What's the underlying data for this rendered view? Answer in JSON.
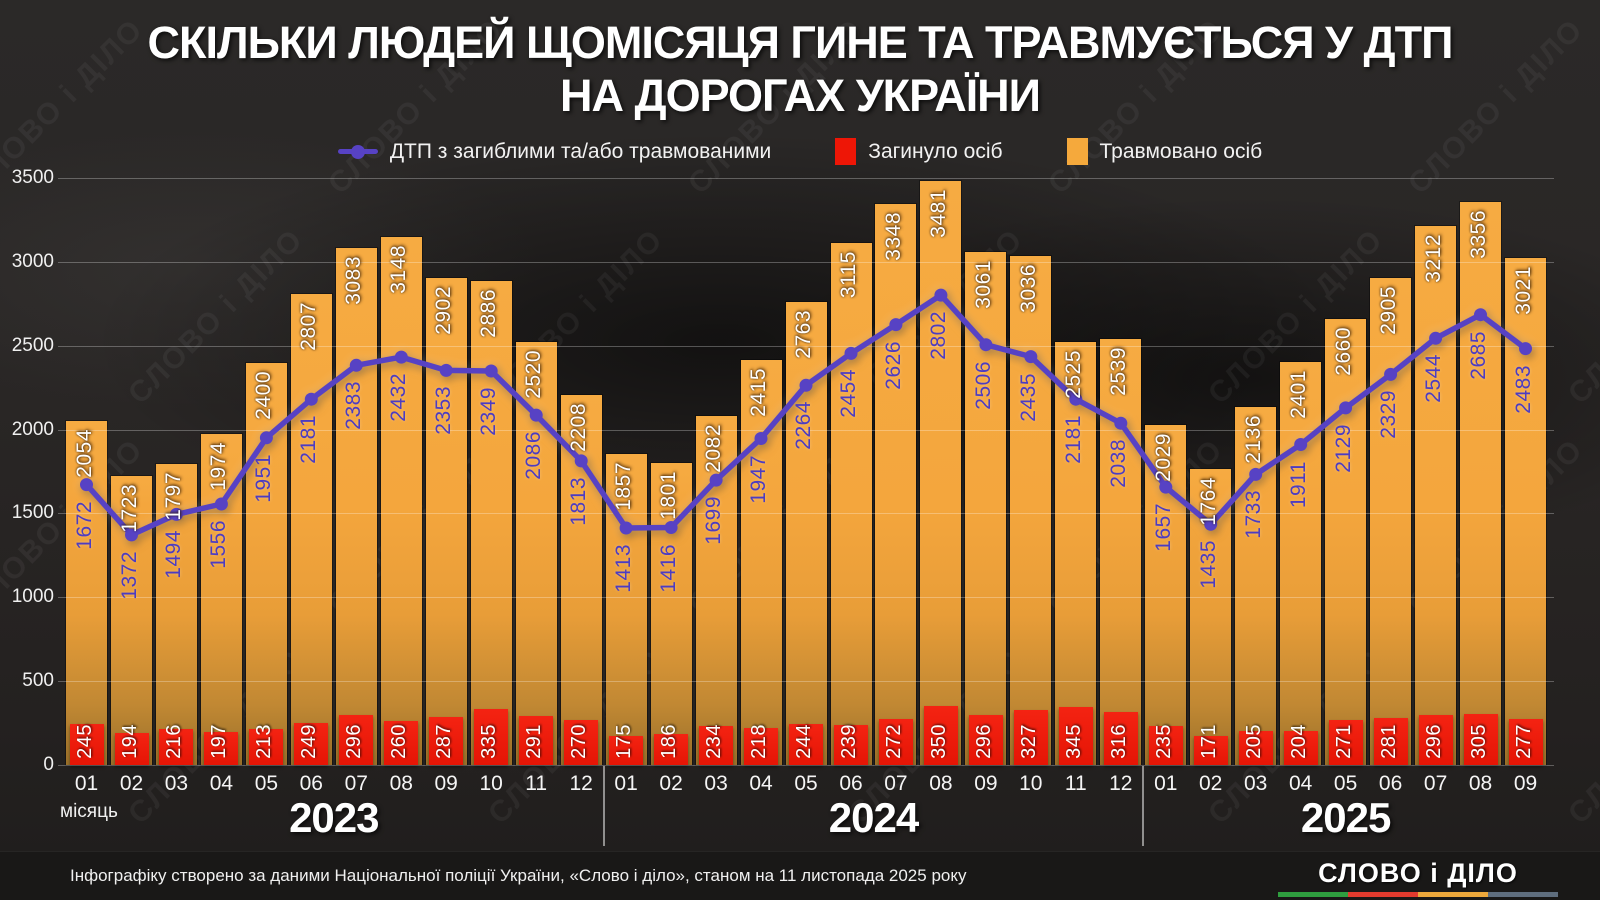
{
  "title": {
    "line1": "СКІЛЬКИ ЛЮДЕЙ ЩОМІСЯЦЯ ГИНЕ ТА ТРАВМУЄТЬСЯ У ДТП",
    "line2": "НА ДОРОГАХ УКРАЇНИ"
  },
  "legend": [
    {
      "key": "accidents",
      "label": "ДТП з загиблими та/або травмованими",
      "color": "#5742c4",
      "marker": "line-with-dot"
    },
    {
      "key": "killed",
      "label": "Загинуло осіб",
      "color": "#ee1606",
      "marker": "square"
    },
    {
      "key": "injured",
      "label": "Травмовано осіб",
      "color": "#f5a93c",
      "marker": "square"
    }
  ],
  "axis": {
    "x_axis_label": "місяць",
    "y_ticks": [
      0,
      500,
      1000,
      1500,
      2000,
      2500,
      3000,
      3500
    ]
  },
  "watermark": "СЛОВО і ДІЛО",
  "footer": {
    "note": "Інфографіку створено за даними Національної поліції України, «Слово і діло», станом на 11 листопада 2025 року",
    "logo": "СЛОВО і ДІЛО",
    "logo_underline_colors": [
      "#2f9e3f",
      "#e23b2e",
      "#eda83b",
      "#5f6e7e"
    ]
  },
  "chart_data": {
    "type": "bar",
    "subtype": "grouped-bars-with-overlay-line",
    "title": "СКІЛЬКИ ЛЮДЕЙ ЩОМІСЯЦЯ ГИНЕ ТА ТРАВМУЄТЬСЯ У ДТП НА ДОРОГАХ УКРАЇНИ",
    "xlabel": "місяць",
    "ylabel": "",
    "ylim": [
      0,
      3500
    ],
    "yticks": [
      0,
      500,
      1000,
      1500,
      2000,
      2500,
      3000,
      3500
    ],
    "grid": true,
    "legend_position": "top",
    "colors": {
      "injured": "#f5a93c",
      "killed": "#ee1606",
      "accidents": "#5742c4"
    },
    "series_names": {
      "injured": "Травмовано осіб",
      "killed": "Загинуло осіб",
      "accidents": "ДТП з загиблими та/або травмованими"
    },
    "years": [
      {
        "label": "2023",
        "months": [
          "01",
          "02",
          "03",
          "04",
          "05",
          "06",
          "07",
          "08",
          "09",
          "10",
          "11",
          "12"
        ],
        "injured": [
          2054,
          1723,
          1797,
          1974,
          2400,
          2807,
          3083,
          3148,
          2902,
          2886,
          2520,
          2208
        ],
        "killed": [
          245,
          194,
          216,
          197,
          213,
          249,
          296,
          260,
          287,
          335,
          291,
          270
        ],
        "accidents": [
          1672,
          1372,
          1494,
          1556,
          1951,
          2181,
          2383,
          2432,
          2353,
          2349,
          2086,
          1813
        ]
      },
      {
        "label": "2024",
        "months": [
          "01",
          "02",
          "03",
          "04",
          "05",
          "06",
          "07",
          "08",
          "09",
          "10",
          "11",
          "12"
        ],
        "injured": [
          1857,
          1801,
          2082,
          2415,
          2763,
          3115,
          3348,
          3481,
          3061,
          3036,
          2525,
          2539
        ],
        "killed": [
          175,
          186,
          234,
          218,
          244,
          239,
          272,
          350,
          296,
          327,
          345,
          316
        ],
        "accidents": [
          1413,
          1416,
          1699,
          1947,
          2264,
          2454,
          2626,
          2802,
          2506,
          2435,
          2181,
          2038
        ]
      },
      {
        "label": "2025",
        "months": [
          "01",
          "02",
          "03",
          "04",
          "05",
          "06",
          "07",
          "08",
          "09"
        ],
        "injured": [
          2029,
          1764,
          2136,
          2401,
          2660,
          2905,
          3212,
          3356,
          3021
        ],
        "killed": [
          235,
          171,
          205,
          204,
          271,
          281,
          296,
          305,
          277
        ],
        "accidents": [
          1657,
          1435,
          1733,
          1911,
          2129,
          2329,
          2544,
          2685,
          2483
        ]
      }
    ]
  }
}
